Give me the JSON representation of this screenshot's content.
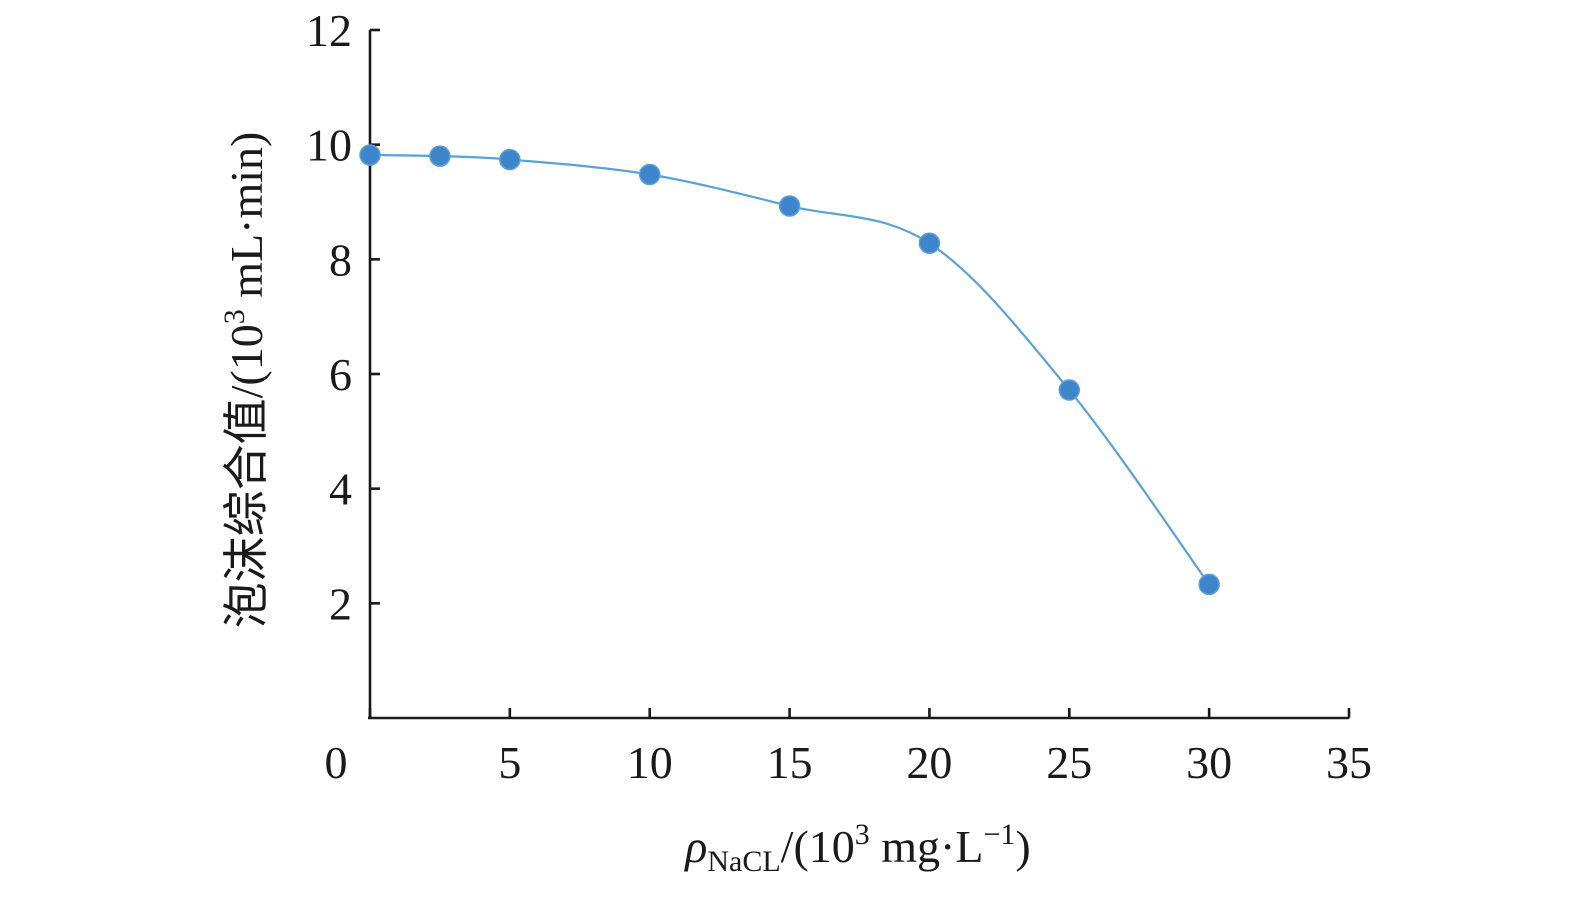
{
  "chart_data": {
    "type": "line",
    "title": "",
    "xlabel": {
      "symbol": "ρ",
      "subscript": "NaCL",
      "text": "/(10",
      "sup": "3",
      "unit": " mg·L",
      "unit_sup": "−1",
      "close": ")"
    },
    "ylabel": {
      "text": "泡沫综合值/(10",
      "sup": "3",
      "unit": " mL·min)"
    },
    "xlim": [
      0,
      35
    ],
    "ylim": [
      0,
      12
    ],
    "xticks": [
      "0",
      "5",
      "10",
      "15",
      "20",
      "25",
      "30",
      "35"
    ],
    "yticks": [
      "2",
      "4",
      "6",
      "8",
      "10",
      "12"
    ],
    "grid": false,
    "legend": "none",
    "series": [
      {
        "x": [
          0,
          2.5,
          5,
          10,
          15,
          20,
          25,
          30
        ],
        "y": [
          9.82,
          9.8,
          9.74,
          9.48,
          8.93,
          8.28,
          5.72,
          2.33
        ],
        "color": "#5aa2d8",
        "marker_color": "#3d86cc",
        "smooth": true
      }
    ]
  }
}
